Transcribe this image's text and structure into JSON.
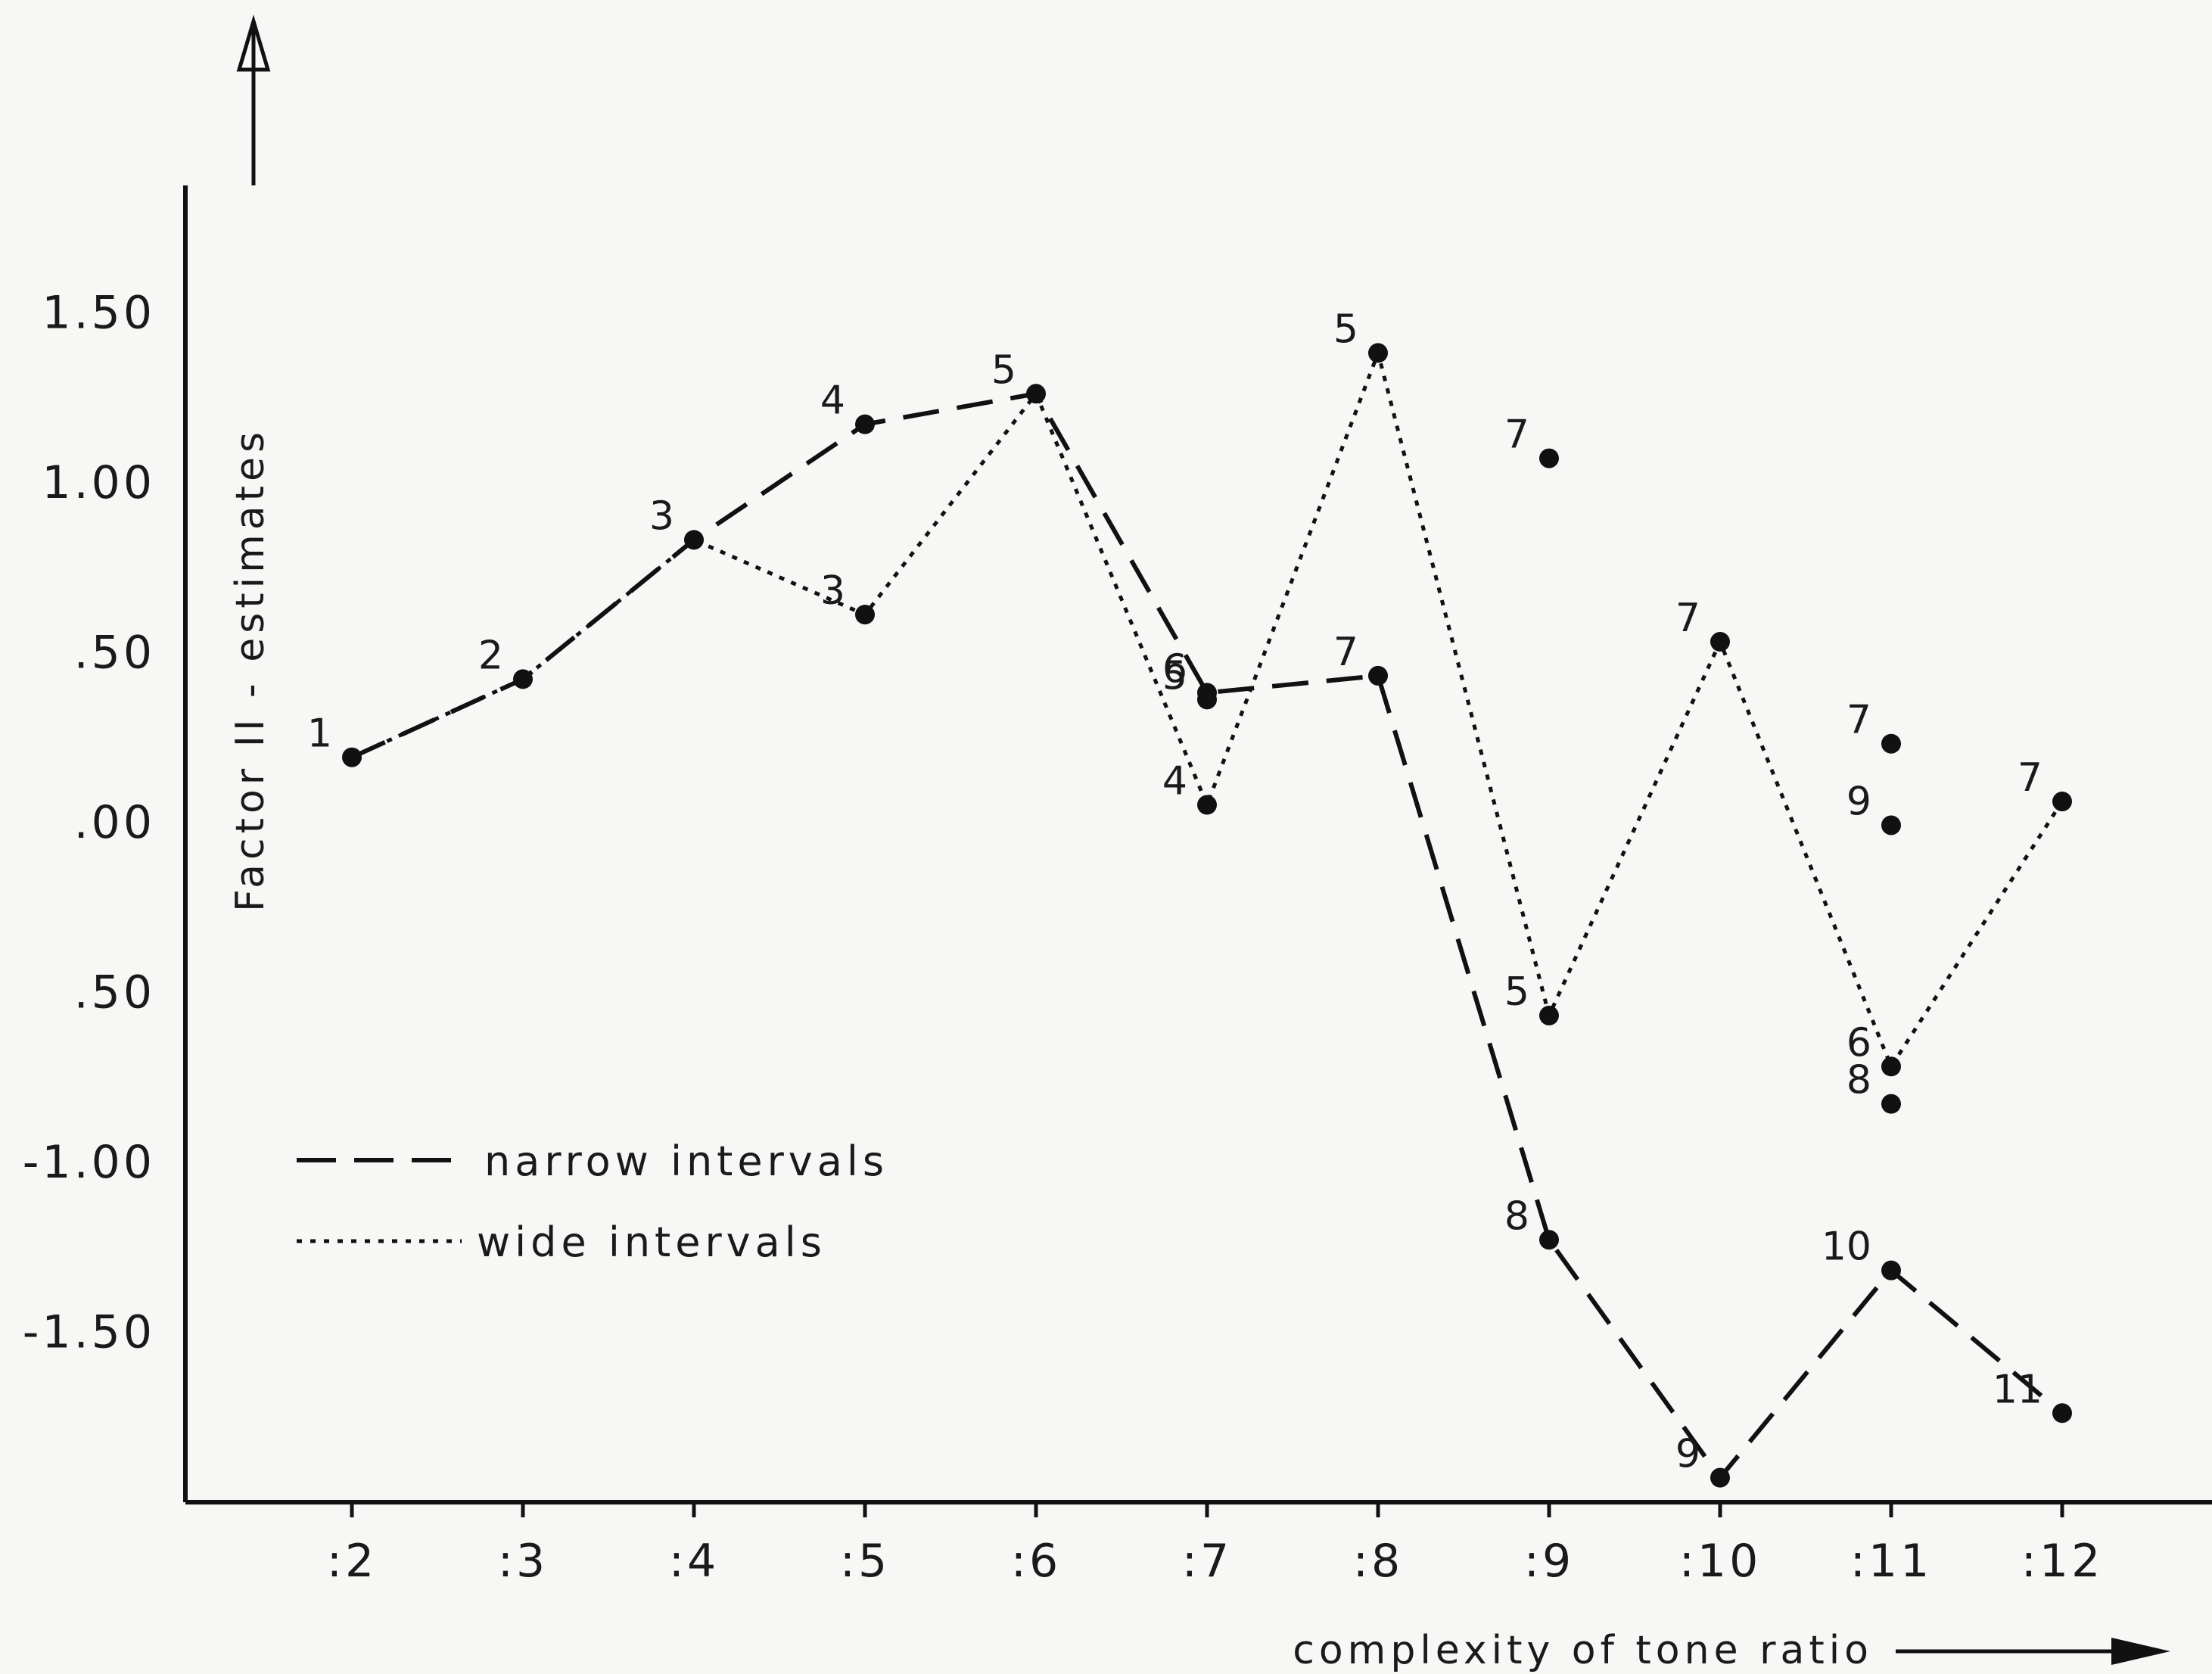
{
  "chart_data": {
    "type": "line",
    "xlabel": "complexity of tone ratio",
    "ylabel": "Factor II - estimates",
    "categories": [
      ":2",
      ":3",
      ":4",
      ":5",
      ":6",
      ":7",
      ":8",
      ":9",
      ":10",
      ":11",
      ":12"
    ],
    "yticks": [
      "1.50",
      "1.00",
      ".50",
      ".00",
      ".50",
      "-1.00",
      "-1.50"
    ],
    "ylim": [
      -2.0,
      2.3
    ],
    "grid": false,
    "legend_position": "lower-left",
    "legend": [
      {
        "label": "narrow intervals",
        "style": "long-dash"
      },
      {
        "label": "wide intervals",
        "style": "dotted"
      }
    ],
    "series": [
      {
        "name": "narrow intervals",
        "style": "long-dash",
        "points": [
          {
            "x": ":2",
            "y": 0.19,
            "label": "1"
          },
          {
            "x": ":3",
            "y": 0.42,
            "label": "2"
          },
          {
            "x": ":4",
            "y": 0.83,
            "label": "3"
          },
          {
            "x": ":5",
            "y": 1.17,
            "label": "4"
          },
          {
            "x": ":6",
            "y": 1.26,
            "label": "5"
          },
          {
            "x": ":7",
            "y": 0.38,
            "label": "6"
          },
          {
            "x": ":8",
            "y": 0.43,
            "label": "7"
          },
          {
            "x": ":9",
            "y": -1.23,
            "label": "8"
          },
          {
            "x": ":10",
            "y": -1.93,
            "label": "9"
          },
          {
            "x": ":11",
            "y": -1.32,
            "label": "10"
          },
          {
            "x": ":12",
            "y": -1.74,
            "label": "11"
          }
        ]
      },
      {
        "name": "wide intervals",
        "style": "dotted",
        "points": [
          {
            "x": ":2",
            "y": 0.19,
            "label": "1"
          },
          {
            "x": ":3",
            "y": 0.42,
            "label": "2"
          },
          {
            "x": ":4",
            "y": 0.83,
            "label": "3"
          },
          {
            "x": ":5",
            "y": 0.61,
            "label": "3"
          },
          {
            "x": ":6",
            "y": 1.26,
            "label": "5"
          },
          {
            "x": ":7",
            "y": 0.05,
            "label": "4"
          },
          {
            "x": ":8",
            "y": 1.38,
            "label": "5"
          },
          {
            "x": ":9",
            "y": -0.57,
            "label": "5"
          },
          {
            "x": ":10",
            "y": 0.53,
            "label": "7"
          },
          {
            "x": ":11",
            "y": -0.72,
            "label": "6"
          },
          {
            "x": ":12",
            "y": 0.06,
            "label": "7"
          }
        ]
      }
    ],
    "extra_points": [
      {
        "x": ":7",
        "y": 0.36,
        "label": "5"
      },
      {
        "x": ":9",
        "y": 1.07,
        "label": "7"
      },
      {
        "x": ":11",
        "y": 0.23,
        "label": "7"
      },
      {
        "x": ":11",
        "y": -0.01,
        "label": "9"
      },
      {
        "x": ":11",
        "y": -0.83,
        "label": "8"
      }
    ]
  }
}
